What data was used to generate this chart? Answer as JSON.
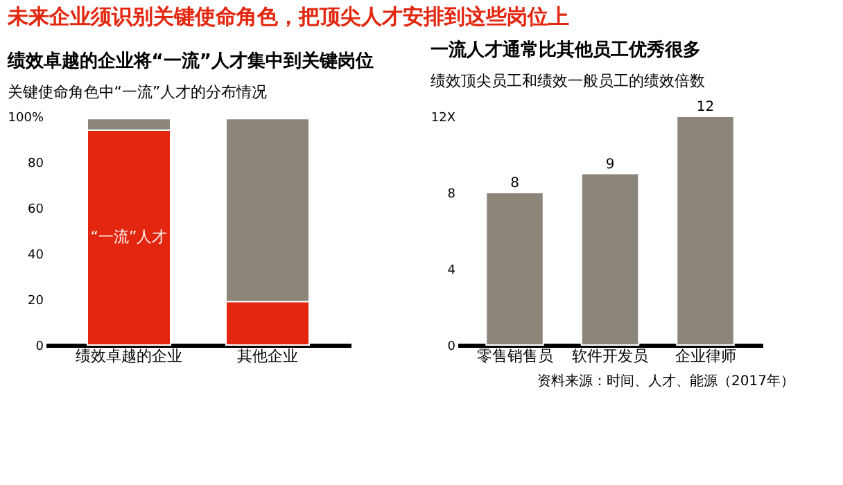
{
  "chart_data": [
    {
      "type": "bar",
      "stacked": true,
      "title": "绩效卓越的企业将“一流”人才集中到关键岗位",
      "subtitle": "关键使命角色中“一流”人才的分布情况",
      "annotations": [
        "未来企业须识别关键使命角色，把顶尖人才安排到这些岗位上"
      ],
      "categories": [
        "绩效卓越的企业",
        "其他企业"
      ],
      "series": [
        {
          "name": "“一流”人才",
          "color": "#e3260f",
          "values": [
            94,
            19
          ]
        },
        {
          "color": "#8b857a",
          "values": [
            5,
            80
          ]
        }
      ],
      "ylim": [
        0,
        100
      ],
      "yticks": [
        0,
        20,
        40,
        60,
        80,
        {
          "value": 100,
          "label": "100%"
        }
      ],
      "grid": false,
      "legend": false
    },
    {
      "type": "bar",
      "title": "一流人才通常比其他员工优秀很多",
      "subtitle": "绩效顶尖员工和绩效一般员工的绩效倍数",
      "annotations": [
        "资料来源：时间、人才、能源（2017年）"
      ],
      "categories": [
        "零售销售员",
        "软件开发员",
        "企业律师"
      ],
      "series": [
        {
          "color": "#8b857a",
          "values": [
            8,
            9,
            12
          ]
        }
      ],
      "data_labels": true,
      "ylim": [
        0,
        12
      ],
      "yticks": [
        0,
        4,
        8,
        {
          "value": 12,
          "label": "12X"
        }
      ],
      "grid": false,
      "legend": false
    }
  ]
}
